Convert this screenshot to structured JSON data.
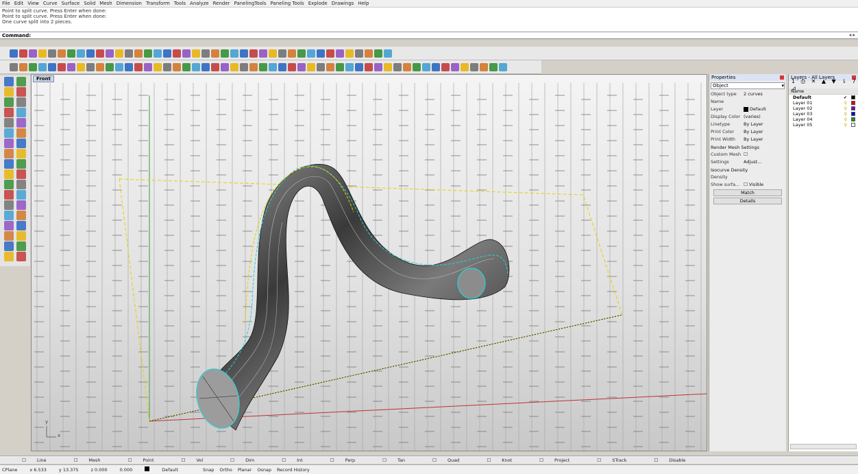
{
  "menu": [
    "File",
    "Edit",
    "View",
    "Curve",
    "Surface",
    "Solid",
    "Mesh",
    "Dimension",
    "Transform",
    "Tools",
    "Analyze",
    "Render",
    "PanelingTools",
    "Paneling Tools",
    "Explode",
    "Drawings",
    "Help"
  ],
  "command_history": [
    "Point to split curve. Press Enter when done:",
    "Point to split curve. Press Enter when done:",
    "One curve split into 2 pieces."
  ],
  "command_label": "Command:",
  "viewport": {
    "title": "Front"
  },
  "properties": {
    "title": "Properties",
    "selector": "Object",
    "object_type_label": "Object type",
    "object_type_value": "2 curves",
    "rows": [
      {
        "k": "Name",
        "v": ""
      },
      {
        "k": "Layer",
        "v": "Default"
      },
      {
        "k": "Display Color",
        "v": "(varies)"
      },
      {
        "k": "Linetype",
        "v": "By Layer"
      },
      {
        "k": "Print Color",
        "v": "By Layer"
      },
      {
        "k": "Print Width",
        "v": "By Layer"
      }
    ],
    "render_mesh_title": "Render Mesh Settings",
    "custom_mesh_label": "Custom Mesh",
    "settings_label": "Settings",
    "adjust_label": "Adjust...",
    "isocurve_title": "Isocurve Density",
    "density_label": "Density",
    "show_surface_label": "Show surfa...",
    "visible_label": "Visible",
    "match_label": "Match",
    "details_label": "Details"
  },
  "layers": {
    "title": "Layers - All Layers",
    "tools": "1 ⎙ ✕ ▲ ▼ ⇂ 7 ⊿",
    "name_header": "Name",
    "items": [
      {
        "name": "Default",
        "color": "#000000",
        "current": true
      },
      {
        "name": "Layer 01",
        "color": "#e00000"
      },
      {
        "name": "Layer 02",
        "color": "#8000c0"
      },
      {
        "name": "Layer 03",
        "color": "#0000e0"
      },
      {
        "name": "Layer 04",
        "color": "#00a000"
      },
      {
        "name": "Layer 05",
        "color": "#ffffff"
      }
    ]
  },
  "view_tabs": [
    "Line",
    "Mesh",
    "Point",
    "Vol",
    "Dim",
    "Int",
    "Perp",
    "Tan",
    "Quad",
    "Knot",
    "Project",
    "STrack",
    "Disable"
  ],
  "status": {
    "cplane": "CPlane",
    "x": "x 6.533",
    "y": "y 13.375",
    "z": "z 0.000",
    "extra": "0.000",
    "layer": "Default",
    "modes": [
      "Snap",
      "Ortho",
      "Planar",
      "Osnap",
      "Record History"
    ]
  }
}
